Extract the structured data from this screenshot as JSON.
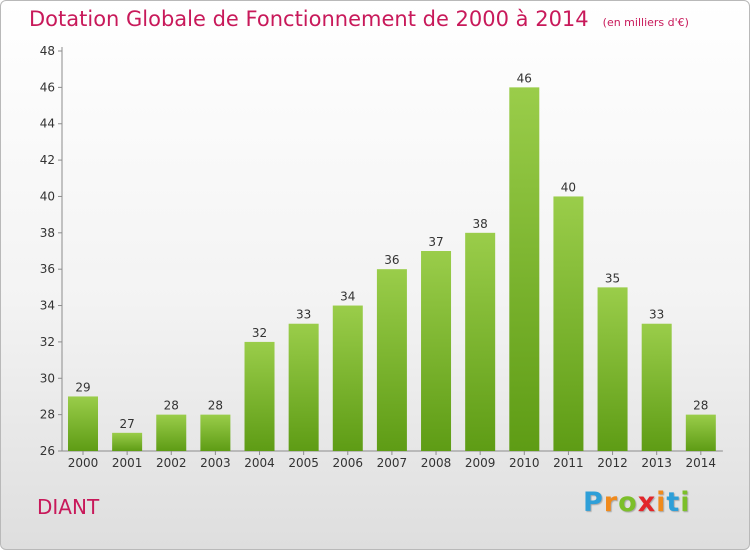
{
  "chart_data": {
    "type": "bar",
    "title": "Dotation Globale de Fonctionnement de 2000 à 2014",
    "subtitle": "(en milliers d'€)",
    "categories": [
      "2000",
      "2001",
      "2002",
      "2003",
      "2004",
      "2005",
      "2006",
      "2007",
      "2008",
      "2009",
      "2010",
      "2011",
      "2012",
      "2013",
      "2014"
    ],
    "values": [
      29,
      27,
      28,
      28,
      32,
      33,
      34,
      36,
      37,
      38,
      46,
      40,
      35,
      33,
      28
    ],
    "ylim": [
      26,
      48
    ],
    "yticks": [
      26,
      28,
      30,
      32,
      34,
      36,
      38,
      40,
      42,
      44,
      46,
      48
    ],
    "grid": false,
    "colors": {
      "bar_top": "#9acd4a",
      "bar_bottom": "#5e9c15",
      "text": "#333333",
      "accent": "#c8195a"
    }
  },
  "footer": {
    "town": "DIANT",
    "logo_letters": [
      {
        "char": "P",
        "color": "#2e9fd8"
      },
      {
        "char": "r",
        "color": "#f08a1c"
      },
      {
        "char": "o",
        "color": "#7cbf2a"
      },
      {
        "char": "x",
        "color": "#e2262a"
      },
      {
        "char": "i",
        "color": "#f08a1c"
      },
      {
        "char": "t",
        "color": "#2e9fd8"
      },
      {
        "char": "i",
        "color": "#7cbf2a"
      }
    ]
  }
}
